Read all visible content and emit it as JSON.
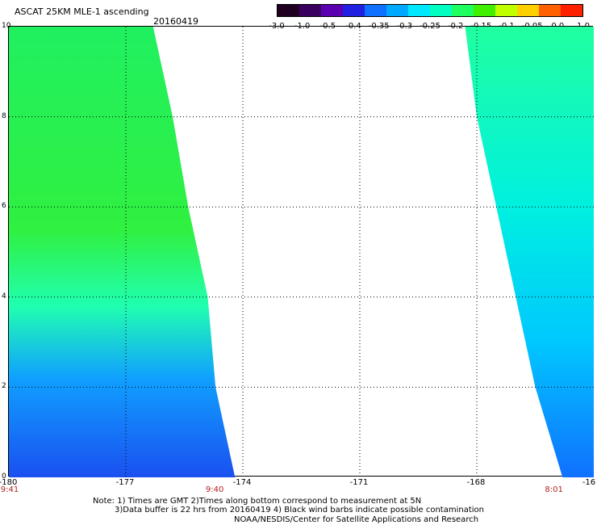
{
  "header": {
    "title": "ASCAT 25KM MLE-1 ascending",
    "date": "20160419"
  },
  "colorbar": {
    "labels": [
      "-3.0",
      "-1.0",
      "-0.5",
      "-0.4",
      "-0.35",
      "-0.3",
      "-0.25",
      "-0.2",
      "-0.15",
      "-0.1",
      "-0.05",
      "0.0",
      "1.0"
    ],
    "colors": [
      "#200020",
      "#3a0060",
      "#5a00b0",
      "#2020e0",
      "#1070ff",
      "#00a8ff",
      "#00e8ff",
      "#00ffc0",
      "#20ff60",
      "#40f000",
      "#c0ff00",
      "#ffd000",
      "#ff6000",
      "#ff2000"
    ]
  },
  "axes": {
    "y_ticks": [
      "10",
      "8",
      "6",
      "4",
      "2",
      "0"
    ],
    "x_ticks": [
      "-180",
      "-177",
      "-174",
      "-171",
      "-168",
      "-16"
    ],
    "time_labels": [
      "9:41",
      "9:40",
      "8:01"
    ]
  },
  "map_data": {
    "lon_range": [
      -180,
      -165
    ],
    "lat_range": [
      0,
      10
    ],
    "swaths": [
      {
        "name": "west",
        "time": "9:40",
        "profile": [
          [
            "10",
            -176.3
          ],
          [
            "8",
            -175.8
          ],
          [
            "6",
            -175.4
          ],
          [
            "4",
            -174.9
          ],
          [
            "2",
            -174.7
          ],
          [
            "0",
            -174.2
          ]
        ]
      },
      {
        "name": "east",
        "time": "8:01",
        "profile": [
          [
            "10",
            -168.3
          ],
          [
            "8",
            -168.0
          ],
          [
            "6",
            -167.5
          ],
          [
            "4",
            -167.0
          ],
          [
            "2",
            -166.5
          ],
          [
            "0",
            -165.8
          ]
        ]
      }
    ]
  },
  "notes": {
    "line1": "Note: 1) Times are GMT 2)Times along bottom correspond to measurement at 5N",
    "line2": "3)Data buffer is 22 hrs from 20160419 4) Black wind barbs indicate possible contamination",
    "line3": "NOAA/NESDIS/Center for Satellite Applications and Research"
  }
}
